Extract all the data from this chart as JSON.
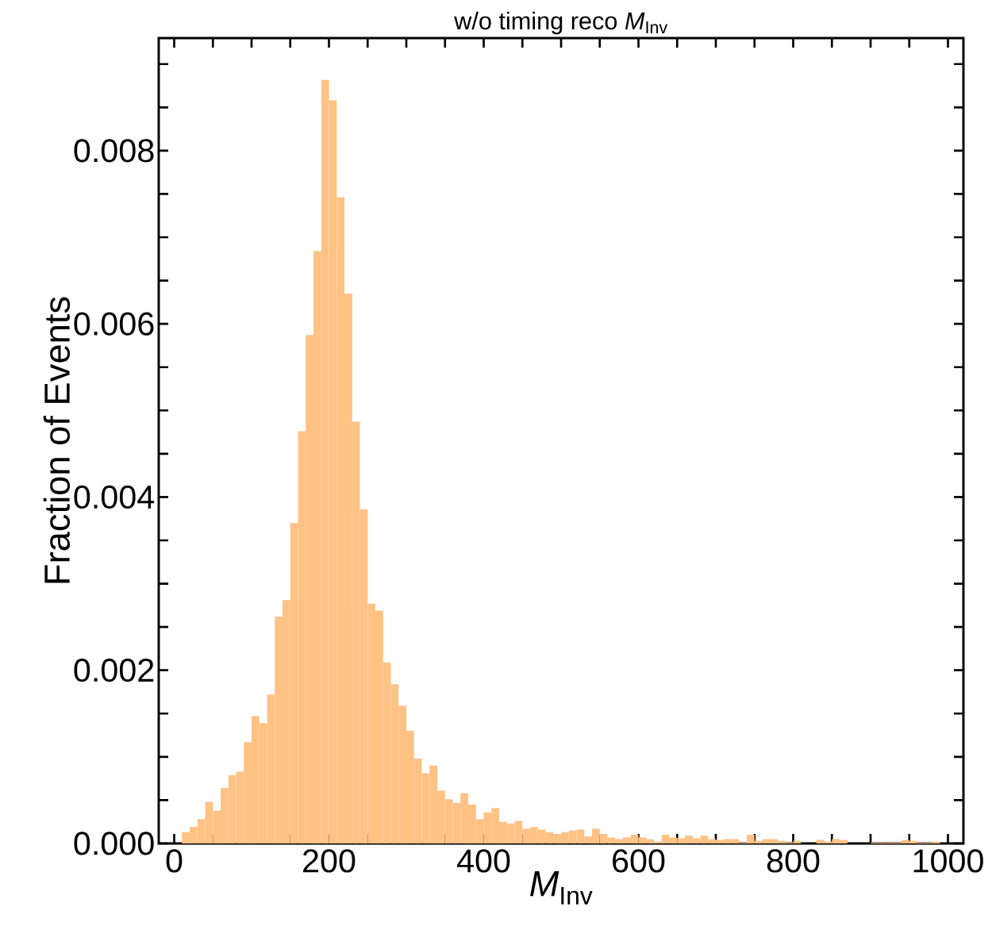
{
  "chart_data": {
    "type": "histogram",
    "title": "w/o timing reco *M*$_{Inv}$",
    "xlabel": "*M*$_{Inv}$",
    "ylabel": "Fraction of Events",
    "color": "#fec285",
    "bins": [
      10,
      20,
      30,
      40,
      50,
      60,
      70,
      80,
      90,
      100,
      110,
      120,
      130,
      140,
      150,
      160,
      170,
      180,
      190,
      200,
      210,
      220,
      230,
      240,
      250,
      260,
      270,
      280,
      290,
      300,
      310,
      320,
      330,
      340,
      350,
      360,
      370,
      380,
      390,
      400,
      410,
      420,
      430,
      440,
      450,
      460,
      470,
      480,
      490,
      500,
      510,
      520,
      530,
      540,
      550,
      560,
      570,
      580,
      590,
      600,
      610,
      620,
      630,
      640,
      650,
      660,
      670,
      680,
      690,
      700,
      710,
      720,
      730,
      740,
      750,
      760,
      770,
      780,
      790,
      800,
      810,
      820,
      830,
      840,
      850,
      860,
      870,
      880,
      890,
      900,
      910,
      920,
      930,
      940,
      950,
      960,
      970,
      980,
      990,
      1000
    ],
    "values": [
      0.00013,
      0.00019,
      0.00028,
      0.00048,
      0.00038,
      0.00064,
      0.00079,
      0.00083,
      0.00117,
      0.00147,
      0.00139,
      0.00172,
      0.00262,
      0.00281,
      0.0037,
      0.00476,
      0.00587,
      0.00684,
      0.00882,
      0.00858,
      0.00746,
      0.00635,
      0.00487,
      0.00386,
      0.00277,
      0.00269,
      0.00209,
      0.00184,
      0.00159,
      0.0013,
      0.00098,
      0.00081,
      0.0009,
      0.00061,
      0.00051,
      0.00047,
      0.00058,
      0.00045,
      0.00028,
      0.00036,
      0.00041,
      0.00025,
      0.00023,
      0.00026,
      0.00017,
      0.00019,
      0.00016,
      0.00013,
      0.00011,
      0.00013,
      0.00015,
      0.00016,
      8e-05,
      0.00017,
      0.00011,
      7e-05,
      5e-05,
      7e-05,
      0.0001,
      7e-05,
      5e-05,
      2e-05,
      0.0001,
      7e-05,
      6e-05,
      9e-05,
      6e-05,
      9e-05,
      5e-05,
      4e-05,
      5e-05,
      5e-05,
      1e-05,
      0.0001,
      3e-05,
      5e-05,
      5e-05,
      3e-05,
      1e-05,
      3e-05,
      0,
      0,
      4e-05,
      2e-05,
      5e-05,
      4e-05,
      0,
      0,
      0,
      1e-05,
      1e-05,
      1e-05,
      1e-05,
      4e-05,
      3e-05,
      1e-05,
      1e-05,
      2e-05,
      0
    ],
    "xlim": [
      -20,
      1020
    ],
    "ylim": [
      0,
      0.0093
    ],
    "xticks": [
      0,
      {
        "value": 50,
        "label": null
      },
      200,
      {
        "value": 100,
        "label": null
      },
      {
        "value": 150,
        "label": null
      },
      {
        "value": 250,
        "label": null
      },
      {
        "value": 300,
        "label": null
      },
      {
        "value": 350,
        "label": null
      },
      400,
      {
        "value": 450,
        "label": null
      },
      {
        "value": 500,
        "label": null
      },
      {
        "value": 550,
        "label": null
      },
      600,
      {
        "value": 650,
        "label": null
      },
      {
        "value": 700,
        "label": null
      },
      {
        "value": 750,
        "label": null
      },
      800,
      {
        "value": 850,
        "label": null
      },
      {
        "value": 900,
        "label": null
      },
      {
        "value": 950,
        "label": null
      },
      1000
    ],
    "yticks": [
      {
        "value": 0,
        "label": "0.000"
      },
      {
        "value": 0.0005,
        "label": null
      },
      {
        "value": 0.001,
        "label": null
      },
      {
        "value": 0.0015,
        "label": null
      },
      {
        "value": 0.002,
        "label": "0.002"
      },
      {
        "value": 0.0025,
        "label": null
      },
      {
        "value": 0.003,
        "label": null
      },
      {
        "value": 0.0035,
        "label": null
      },
      {
        "value": 0.004,
        "label": "0.004"
      },
      {
        "value": 0.0045,
        "label": null
      },
      {
        "value": 0.005,
        "label": null
      },
      {
        "value": 0.0055,
        "label": null
      },
      {
        "value": 0.006,
        "label": "0.006"
      },
      {
        "value": 0.0065,
        "label": null
      },
      {
        "value": 0.007,
        "label": null
      },
      {
        "value": 0.0075,
        "label": null
      },
      {
        "value": 0.008,
        "label": "0.008"
      },
      {
        "value": 0.0085,
        "label": null
      },
      {
        "value": 0.009,
        "label": null
      }
    ],
    "grid": false
  }
}
